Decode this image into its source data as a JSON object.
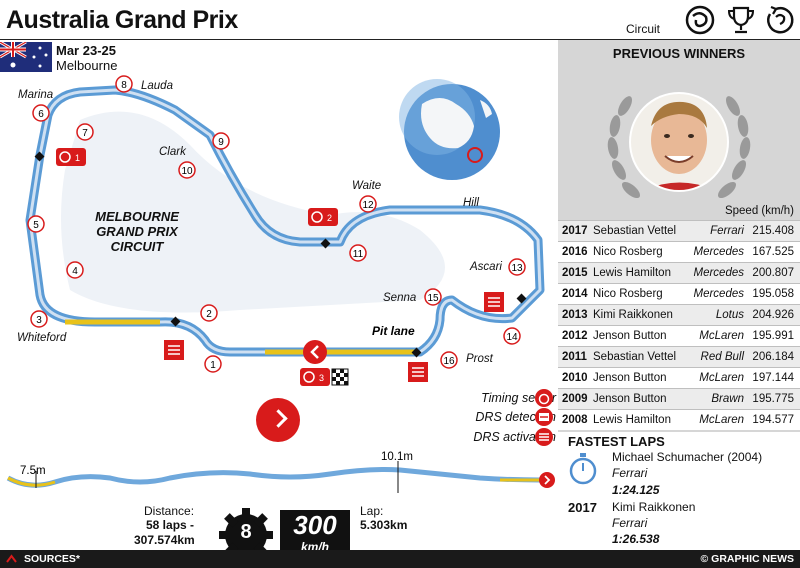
{
  "header": {
    "title": "Australia Grand Prix",
    "circuit_label": "Circuit"
  },
  "event": {
    "dates": "Mar 23-25",
    "city": "Melbourne"
  },
  "map": {
    "circuit_name_lines": [
      "MELBOURNE",
      "GRAND PRIX",
      "CIRCUIT"
    ],
    "corners": [
      "1",
      "2",
      "3",
      "4",
      "5",
      "6",
      "7",
      "8",
      "9",
      "10",
      "11",
      "12",
      "13",
      "14",
      "15",
      "16"
    ],
    "corner_names": [
      "Lauda",
      "Marina",
      "Clark",
      "Waite",
      "Hill",
      "Ascari",
      "Senna",
      "Whiteford",
      "Prost"
    ],
    "pit_lane": "Pit lane",
    "sectors": [
      "1",
      "2",
      "3"
    ]
  },
  "legend": {
    "timing": "Timing sector",
    "detection": "DRS detection",
    "activation": "DRS activation"
  },
  "elevation": {
    "low": "7.5m",
    "high": "10.1m"
  },
  "stats": {
    "distance_label": "Distance:",
    "distance_laps": "58 laps -",
    "distance_km": "307.574km",
    "lap_label": "Lap:",
    "lap_km": "5.303km",
    "gear": "8",
    "top_speed": "300",
    "speed_unit": "km/h"
  },
  "winners": {
    "title": "PREVIOUS WINNERS",
    "speed_header": "Speed (km/h)",
    "rows": [
      {
        "year": "2017",
        "driver": "Sebastian Vettel",
        "team": "Ferrari",
        "speed": "215.408"
      },
      {
        "year": "2016",
        "driver": "Nico Rosberg",
        "team": "Mercedes",
        "speed": "167.525"
      },
      {
        "year": "2015",
        "driver": "Lewis Hamilton",
        "team": "Mercedes",
        "speed": "200.807"
      },
      {
        "year": "2014",
        "driver": "Nico Rosberg",
        "team": "Mercedes",
        "speed": "195.058"
      },
      {
        "year": "2013",
        "driver": "Kimi Raikkonen",
        "team": "Lotus",
        "speed": "204.926"
      },
      {
        "year": "2012",
        "driver": "Jenson Button",
        "team": "McLaren",
        "speed": "195.991"
      },
      {
        "year": "2011",
        "driver": "Sebastian Vettel",
        "team": "Red Bull",
        "speed": "206.184"
      },
      {
        "year": "2010",
        "driver": "Jenson Button",
        "team": "McLaren",
        "speed": "197.144"
      },
      {
        "year": "2009",
        "driver": "Jenson Button",
        "team": "Brawn",
        "speed": "195.775"
      },
      {
        "year": "2008",
        "driver": "Lewis Hamilton",
        "team": "McLaren",
        "speed": "194.577"
      }
    ]
  },
  "fastest": {
    "title": "FASTEST LAPS",
    "record_driver": "Michael Schumacher (2004)",
    "record_team": "Ferrari",
    "record_time": "1:24.125",
    "year": "2017",
    "driver": "Kimi Raikkonen",
    "team": "Ferrari",
    "time": "1:26.538"
  },
  "footer": {
    "sources": "SOURCES*",
    "credit": "© GRAPHIC NEWS"
  },
  "colors": {
    "accent_red": "#d81b1b",
    "track_blue": "#5b9bd5",
    "drs_yellow": "#e8c21a",
    "panel_grey": "#d6d6d6"
  },
  "icons": [
    "circuit-icon",
    "trophy-icon",
    "lap-icon",
    "australia-flag-icon",
    "globe-icon",
    "gear-icon",
    "stopwatch-icon",
    "arrow-right-icon"
  ]
}
